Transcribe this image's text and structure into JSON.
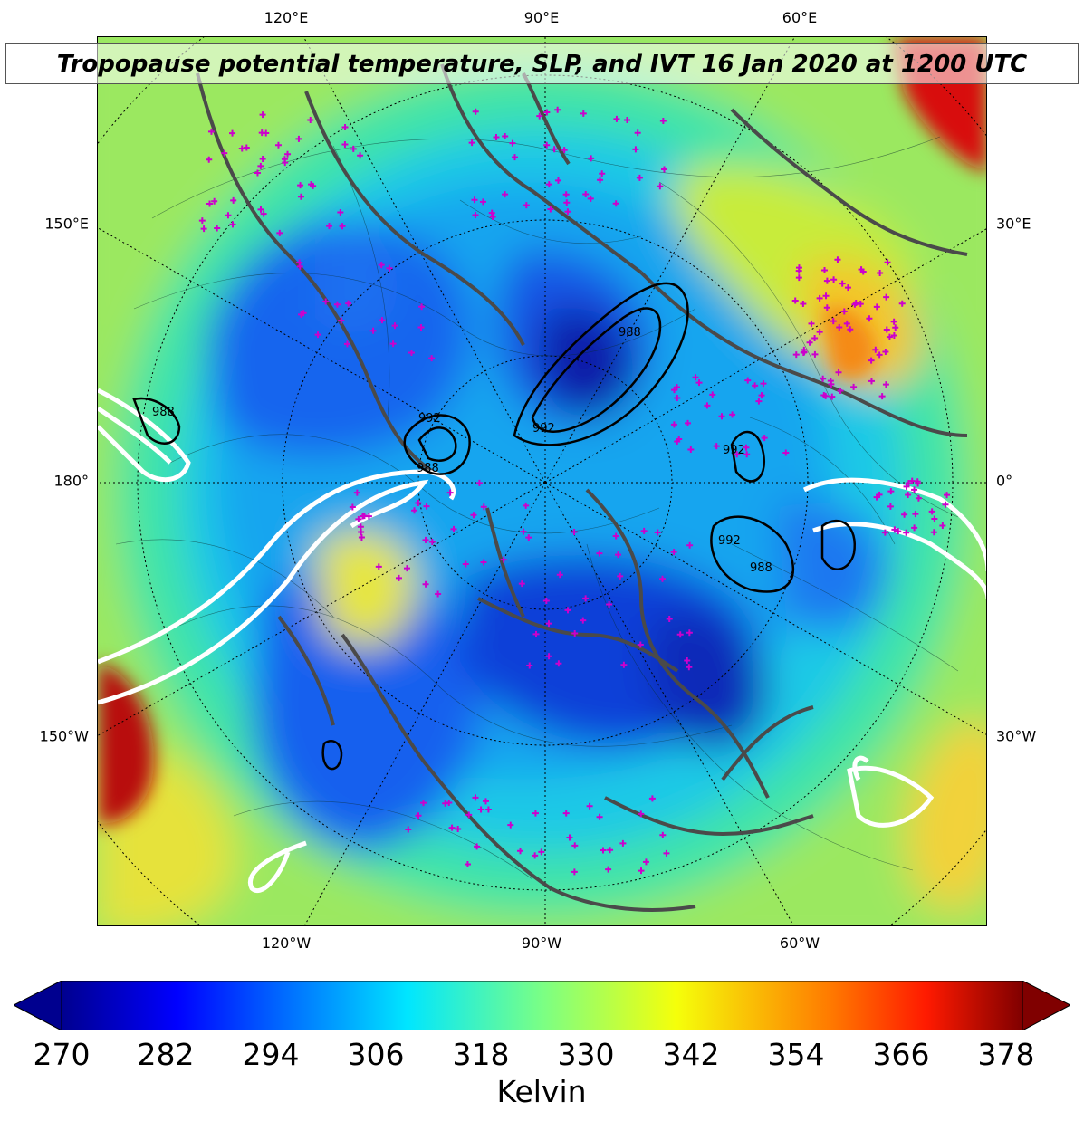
{
  "title": "Tropopause potential temperature, SLP, and IVT 16 Jan 2020 at 1200 UTC",
  "axis_ticks": {
    "top": [
      "120°E",
      "90°E",
      "60°E"
    ],
    "bottom": [
      "120°W",
      "90°W",
      "60°W"
    ],
    "left": [
      "150°E",
      "180°",
      "150°W"
    ],
    "right": [
      "30°E",
      "0°",
      "30°W"
    ]
  },
  "slp_contour_labels": [
    "992",
    "988",
    "992",
    "988",
    "992",
    "988",
    "992",
    "988"
  ],
  "colorbar": {
    "ticks": [
      "270",
      "282",
      "294",
      "306",
      "318",
      "330",
      "342",
      "354",
      "366",
      "378"
    ],
    "unit": "Kelvin",
    "min": 270,
    "max": 378,
    "colormap": "jet",
    "extend": "both"
  },
  "colors": {
    "coastline": "#4a4a4a",
    "station_marker": "#cc00cc",
    "ivt_contour": "#ffffff",
    "slp_contour": "#000000"
  },
  "map": {
    "projection": "north-polar-stereographic",
    "field": "tropopause potential temperature",
    "overlays": [
      "SLP contours",
      "IVT contours",
      "coastlines",
      "graticule",
      "station markers"
    ]
  }
}
